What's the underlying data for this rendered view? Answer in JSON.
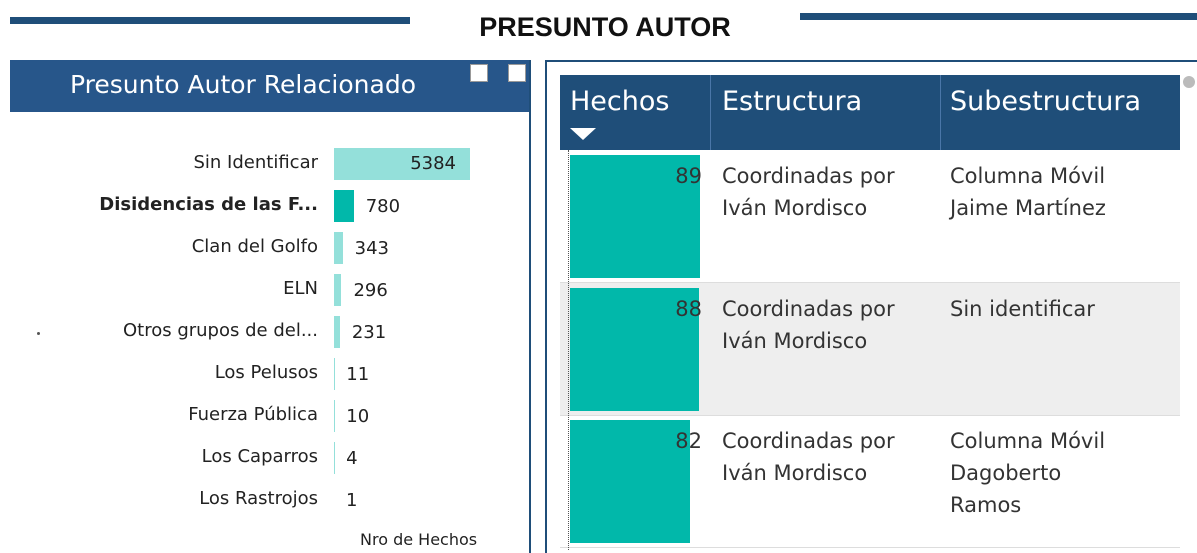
{
  "header": {
    "title": "PRESUNTO AUTOR"
  },
  "chart_data": {
    "type": "bar",
    "orientation": "horizontal",
    "title": "Presunto Autor Relacionado",
    "categories": [
      "Sin Identificar",
      "Disidencias de las F...",
      "Clan del Golfo",
      "ELN",
      "Otros grupos de del...",
      "Los Pelusos",
      "Fuerza Pública",
      "Los Caparros",
      "Los Rastrojos"
    ],
    "values": [
      5384,
      780,
      343,
      296,
      231,
      11,
      10,
      4,
      1
    ],
    "colors": [
      "#94e0da",
      "#01b8aa",
      "#94e0da",
      "#94e0da",
      "#94e0da",
      "#94e0da",
      "#94e0da",
      "#94e0da",
      "#94e0da"
    ],
    "bold": [
      false,
      true,
      false,
      false,
      false,
      false,
      false,
      false,
      false
    ],
    "xlabel": "Nro de Hechos"
  },
  "table": {
    "columns": [
      "Hechos",
      "Estructura",
      "Subestructura"
    ],
    "bar_color": "#01b8aa",
    "rows": [
      [
        89,
        "Coordinadas por Iván Mordisco",
        "Columna Móvil Jaime Martínez"
      ],
      [
        88,
        "Coordinadas por Iván Mordisco",
        "Sin identificar"
      ],
      [
        82,
        "Coordinadas por Iván Mordisco",
        "Columna Móvil Dagoberto Ramos"
      ]
    ]
  }
}
